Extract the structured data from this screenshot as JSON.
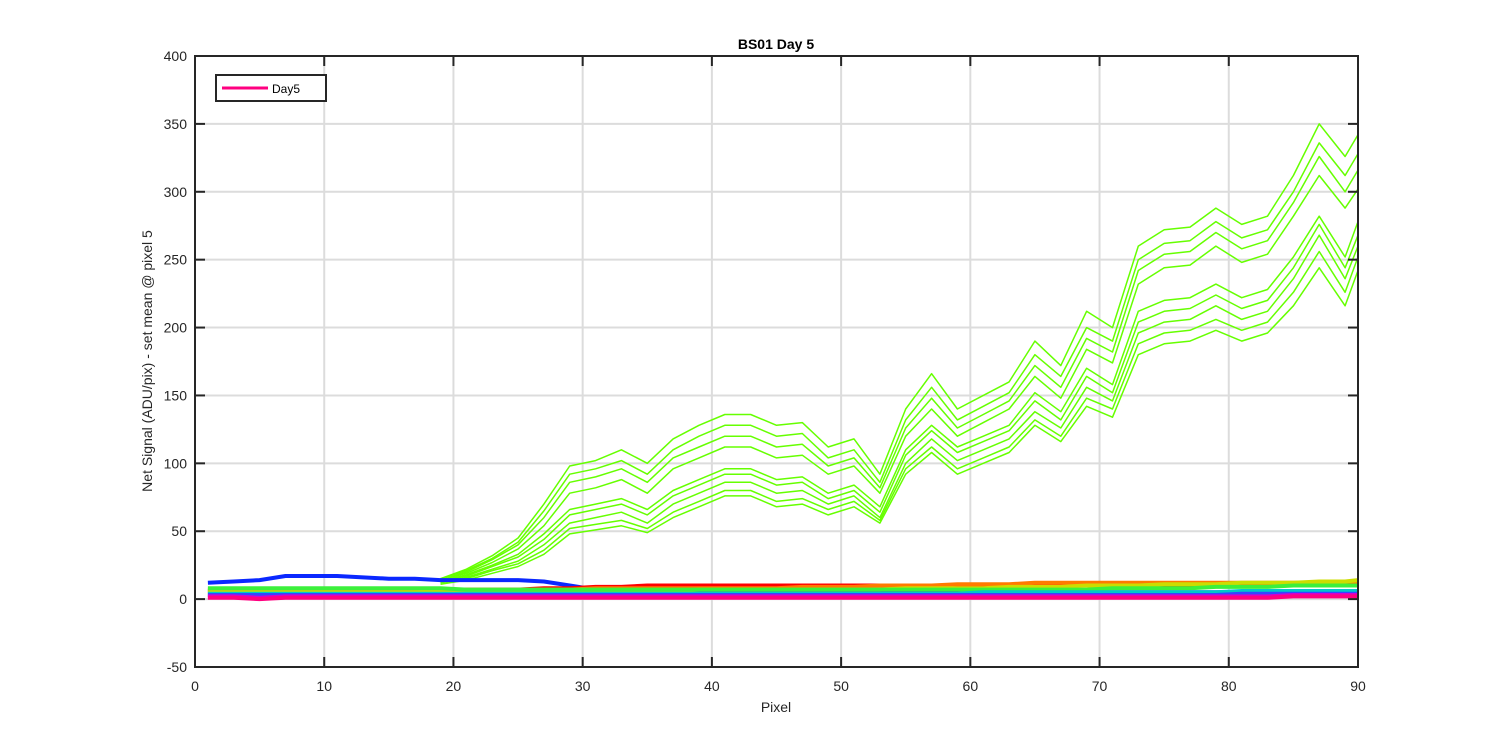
{
  "chart_data": {
    "type": "line",
    "title": "BS01 Day 5",
    "xlabel": "Pixel",
    "ylabel": "Net Signal (ADU/pix) - set mean @ pixel 5",
    "xlim": [
      0,
      90
    ],
    "ylim": [
      -50,
      400
    ],
    "x_ticks": [
      0,
      10,
      20,
      30,
      40,
      50,
      60,
      70,
      80,
      90
    ],
    "y_ticks": [
      -50,
      0,
      50,
      100,
      150,
      200,
      250,
      300,
      350,
      400
    ],
    "grid": true,
    "legend": {
      "position": "top-left",
      "entries": [
        {
          "label": "Day5",
          "color": "#ff0080"
        }
      ]
    },
    "x": [
      1,
      3,
      5,
      7,
      9,
      11,
      13,
      15,
      17,
      19,
      21,
      23,
      25,
      27,
      29,
      31,
      33,
      35,
      37,
      39,
      41,
      43,
      45,
      47,
      49,
      51,
      53,
      55,
      57,
      59,
      61,
      63,
      65,
      67,
      69,
      71,
      73,
      75,
      77,
      79,
      81,
      83,
      85,
      87,
      89,
      90
    ],
    "series": [
      {
        "color": "#66ff00",
        "values": [
          0,
          0,
          0,
          0,
          0,
          0,
          0,
          0,
          0,
          15,
          22,
          32,
          45,
          70,
          98,
          102,
          110,
          100,
          118,
          128,
          136,
          136,
          128,
          130,
          112,
          118,
          92,
          140,
          166,
          140,
          150,
          160,
          190,
          172,
          212,
          200,
          260,
          272,
          274,
          288,
          276,
          282,
          312,
          350,
          326,
          342
        ]
      },
      {
        "color": "#66ff00",
        "values": [
          0,
          0,
          0,
          0,
          0,
          0,
          0,
          0,
          0,
          15,
          21,
          30,
          42,
          65,
          92,
          96,
          102,
          92,
          110,
          120,
          128,
          128,
          120,
          122,
          104,
          110,
          86,
          132,
          156,
          132,
          142,
          152,
          180,
          164,
          200,
          190,
          250,
          262,
          264,
          278,
          266,
          272,
          300,
          336,
          312,
          328
        ]
      },
      {
        "color": "#66ff00",
        "values": [
          0,
          0,
          0,
          0,
          0,
          0,
          0,
          0,
          0,
          14,
          20,
          29,
          40,
          60,
          86,
          90,
          96,
          86,
          104,
          112,
          120,
          120,
          112,
          114,
          98,
          104,
          82,
          126,
          148,
          126,
          136,
          146,
          172,
          156,
          192,
          182,
          242,
          254,
          256,
          270,
          258,
          264,
          292,
          326,
          300,
          316
        ]
      },
      {
        "color": "#66ff00",
        "values": [
          0,
          0,
          0,
          0,
          0,
          0,
          0,
          0,
          0,
          14,
          19,
          27,
          37,
          54,
          78,
          82,
          88,
          78,
          96,
          104,
          112,
          112,
          104,
          106,
          92,
          98,
          78,
          120,
          140,
          120,
          130,
          140,
          164,
          148,
          184,
          174,
          232,
          244,
          246,
          260,
          248,
          254,
          282,
          312,
          288,
          302
        ]
      },
      {
        "color": "#66ff00",
        "values": [
          0,
          0,
          0,
          0,
          0,
          0,
          0,
          0,
          0,
          13,
          18,
          25,
          33,
          48,
          66,
          70,
          74,
          66,
          80,
          88,
          96,
          96,
          88,
          90,
          78,
          84,
          68,
          110,
          128,
          112,
          120,
          128,
          152,
          138,
          170,
          158,
          212,
          220,
          222,
          232,
          222,
          228,
          252,
          282,
          252,
          278
        ]
      },
      {
        "color": "#66ff00",
        "values": [
          0,
          0,
          0,
          0,
          0,
          0,
          0,
          0,
          0,
          13,
          17,
          24,
          31,
          44,
          62,
          66,
          70,
          62,
          76,
          84,
          92,
          92,
          84,
          86,
          74,
          80,
          64,
          106,
          124,
          108,
          116,
          124,
          146,
          132,
          164,
          152,
          204,
          212,
          214,
          224,
          214,
          220,
          244,
          276,
          244,
          268
        ]
      },
      {
        "color": "#66ff00",
        "values": [
          0,
          0,
          0,
          0,
          0,
          0,
          0,
          0,
          0,
          12,
          16,
          22,
          28,
          40,
          56,
          60,
          64,
          56,
          70,
          78,
          86,
          86,
          78,
          80,
          70,
          76,
          60,
          100,
          118,
          102,
          110,
          118,
          138,
          126,
          156,
          146,
          196,
          204,
          206,
          216,
          206,
          212,
          236,
          268,
          236,
          260
        ]
      },
      {
        "color": "#66ff00",
        "values": [
          0,
          0,
          0,
          0,
          0,
          0,
          0,
          0,
          0,
          12,
          15,
          21,
          26,
          36,
          52,
          55,
          58,
          52,
          64,
          72,
          80,
          80,
          72,
          74,
          66,
          72,
          58,
          96,
          112,
          96,
          104,
          112,
          132,
          120,
          148,
          140,
          188,
          196,
          198,
          206,
          198,
          204,
          226,
          256,
          226,
          252
        ]
      },
      {
        "color": "#66ff00",
        "values": [
          0,
          0,
          0,
          0,
          0,
          0,
          0,
          0,
          0,
          11,
          14,
          19,
          24,
          33,
          48,
          51,
          54,
          49,
          60,
          68,
          76,
          76,
          68,
          70,
          62,
          68,
          56,
          92,
          108,
          92,
          100,
          108,
          128,
          116,
          142,
          134,
          180,
          188,
          190,
          198,
          190,
          196,
          216,
          244,
          216,
          242
        ]
      },
      {
        "color": "#0a28ff",
        "values": [
          12,
          13,
          14,
          17,
          17,
          17,
          16,
          15,
          15,
          14,
          14,
          14,
          14,
          13,
          10,
          7,
          6,
          5,
          5,
          5,
          5,
          5,
          5,
          5,
          5,
          5,
          5,
          5,
          5,
          5,
          5,
          5,
          5,
          5,
          5,
          5,
          5,
          5,
          5,
          5,
          5,
          5,
          5,
          5,
          5,
          5
        ]
      },
      {
        "color": "#ff0000",
        "values": [
          6,
          6,
          6,
          6,
          6,
          6,
          6,
          6,
          6,
          7,
          7,
          7,
          7,
          8,
          8,
          9,
          9,
          10,
          10,
          10,
          10,
          10,
          10,
          10,
          10,
          10,
          10,
          10,
          10,
          10,
          10,
          10,
          10,
          10,
          10,
          10,
          10,
          10,
          10,
          10,
          10,
          10,
          10,
          10,
          10,
          10
        ]
      },
      {
        "color": "#ff7a00",
        "values": [
          7,
          7,
          7,
          7,
          7,
          7,
          7,
          7,
          7,
          7,
          7,
          7,
          7,
          7,
          7,
          8,
          8,
          8,
          8,
          8,
          8,
          8,
          8,
          9,
          9,
          9,
          10,
          10,
          10,
          11,
          11,
          11,
          12,
          12,
          12,
          12,
          12,
          12,
          12,
          12,
          12,
          12,
          12,
          12,
          12,
          12
        ]
      },
      {
        "color": "#ccdd00",
        "values": [
          5,
          5,
          5,
          5,
          5,
          5,
          5,
          5,
          5,
          6,
          6,
          6,
          6,
          6,
          6,
          6,
          6,
          6,
          6,
          7,
          7,
          7,
          7,
          7,
          7,
          7,
          7,
          8,
          8,
          8,
          8,
          9,
          9,
          9,
          10,
          10,
          10,
          11,
          11,
          11,
          12,
          12,
          12,
          13,
          13,
          14
        ]
      },
      {
        "color": "#3cf03c",
        "values": [
          8,
          8,
          8,
          8,
          8,
          8,
          8,
          8,
          8,
          8,
          7,
          7,
          7,
          7,
          7,
          7,
          7,
          7,
          7,
          7,
          7,
          7,
          7,
          7,
          7,
          7,
          7,
          7,
          7,
          7,
          7,
          7,
          7,
          7,
          7,
          8,
          8,
          8,
          8,
          9,
          9,
          9,
          10,
          10,
          10,
          10
        ]
      },
      {
        "color": "#00c8c8",
        "values": [
          4,
          4,
          4,
          4,
          4,
          4,
          4,
          4,
          4,
          4,
          4,
          4,
          4,
          4,
          4,
          4,
          4,
          4,
          4,
          4,
          4,
          4,
          4,
          4,
          4,
          4,
          4,
          4,
          4,
          4,
          5,
          5,
          5,
          5,
          5,
          5,
          5,
          5,
          5,
          5,
          6,
          6,
          6,
          6,
          6,
          6
        ]
      },
      {
        "color": "#3246ff",
        "values": [
          3,
          3,
          3,
          3,
          3,
          3,
          3,
          3,
          3,
          3,
          3,
          3,
          3,
          3,
          3,
          3,
          3,
          3,
          3,
          3,
          3,
          3,
          3,
          3,
          3,
          3,
          3,
          3,
          3,
          3,
          3,
          3,
          3,
          3,
          3,
          3,
          3,
          3,
          3,
          3,
          4,
          4,
          4,
          4,
          4,
          4
        ]
      },
      {
        "color": "#d200d2",
        "values": [
          2,
          2,
          1,
          2,
          2,
          2,
          2,
          2,
          2,
          2,
          2,
          2,
          2,
          2,
          2,
          2,
          2,
          2,
          2,
          2,
          2,
          2,
          2,
          2,
          2,
          2,
          2,
          2,
          2,
          2,
          2,
          2,
          2,
          2,
          2,
          2,
          2,
          2,
          2,
          2,
          2,
          2,
          3,
          3,
          3,
          3
        ]
      },
      {
        "color": "#ff0080",
        "values": [
          1,
          1,
          0,
          1,
          1,
          1,
          1,
          1,
          1,
          1,
          1,
          1,
          1,
          1,
          1,
          1,
          1,
          1,
          1,
          1,
          1,
          1,
          1,
          1,
          1,
          1,
          1,
          1,
          1,
          1,
          1,
          1,
          1,
          1,
          1,
          1,
          1,
          1,
          1,
          1,
          1,
          1,
          2,
          2,
          2,
          2
        ]
      }
    ]
  }
}
